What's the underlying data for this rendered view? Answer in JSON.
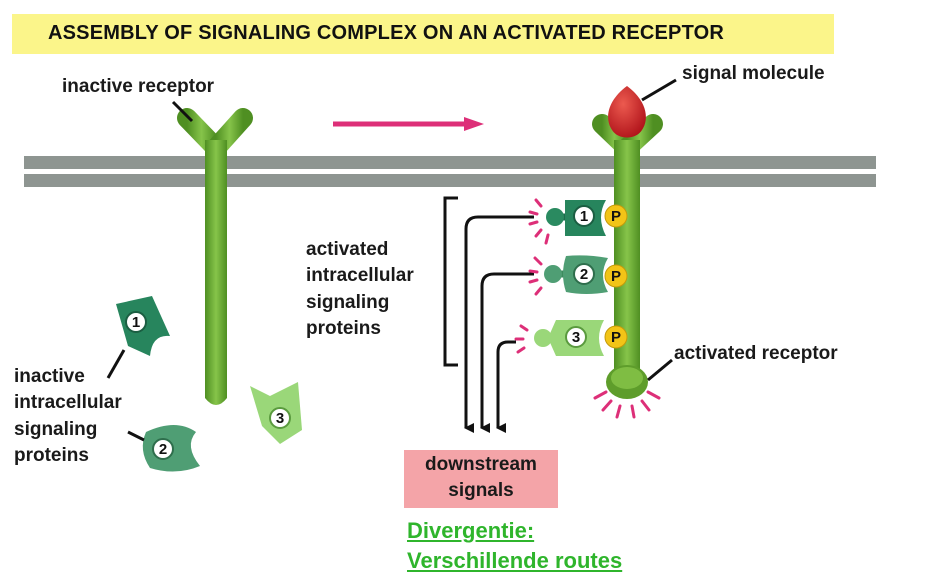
{
  "title": "ASSEMBLY OF SIGNALING COMPLEX ON AN ACTIVATED RECEPTOR",
  "labels": {
    "inactive_receptor": "inactive receptor",
    "signal_molecule": "signal molecule",
    "activated_proteins": [
      "activated",
      "intracellular",
      "signaling",
      "proteins"
    ],
    "inactive_proteins": [
      "inactive",
      "intracellular",
      "signaling",
      "proteins"
    ],
    "activated_receptor": "activated receptor",
    "downstream": [
      "downstream",
      "signals"
    ]
  },
  "protein_numbers": [
    "1",
    "2",
    "3"
  ],
  "phospho_label": "P",
  "note": [
    "Divergentie:",
    "Verschillende routes"
  ],
  "colors": {
    "title_bg": "#fbf58a",
    "receptor": "#6aac32",
    "membrane": "#8e9591",
    "signal_molecule": "#c61d23",
    "arrow": "#dd2f78",
    "protein1": "#27855d",
    "protein2": "#4f9e74",
    "protein3": "#9ad779",
    "phospho": "#f2c417",
    "downstream_bg": "#f4a4a8",
    "note_text": "#2fb52c"
  }
}
